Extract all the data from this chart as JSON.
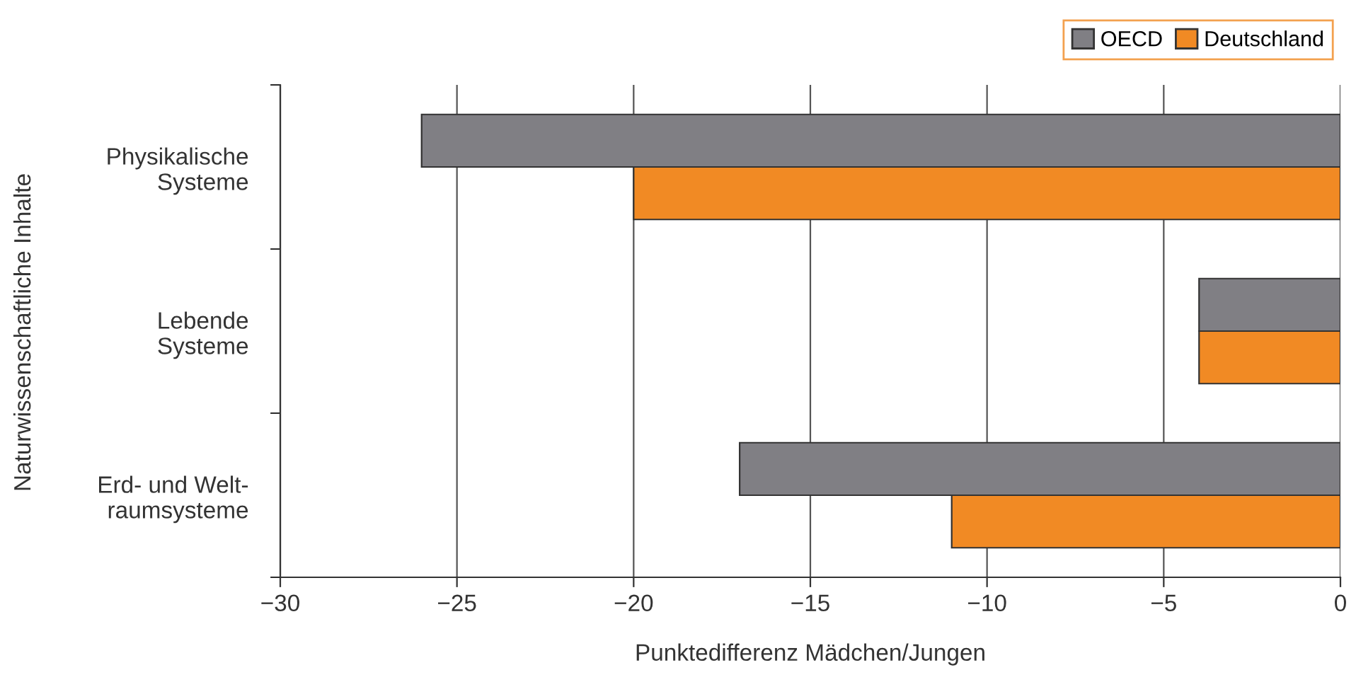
{
  "chart_data": {
    "type": "bar",
    "orientation": "horizontal",
    "categories": [
      "Physikalische\nSysteme",
      "Lebende\nSysteme",
      "Erd- und Welt-\nraumsysteme"
    ],
    "series": [
      {
        "name": "OECD",
        "color": "#807f84",
        "values": [
          -26,
          -4,
          -17
        ]
      },
      {
        "name": "Deutschland",
        "color": "#f18a24",
        "values": [
          -20,
          -4,
          -11
        ]
      }
    ],
    "xlim": [
      -30,
      0
    ],
    "xticks": [
      {
        "value": -30,
        "label": "−30"
      },
      {
        "value": -25,
        "label": "−25"
      },
      {
        "value": -20,
        "label": "−20"
      },
      {
        "value": -15,
        "label": "−15"
      },
      {
        "value": -10,
        "label": "−10"
      },
      {
        "value": -5,
        "label": "−5"
      },
      0
    ],
    "xlabel": "Punktedifferenz Mädchen/Jungen",
    "ylabel": "Naturwissenschaftliche Inhalte",
    "grid": "x",
    "legend": "top right"
  }
}
